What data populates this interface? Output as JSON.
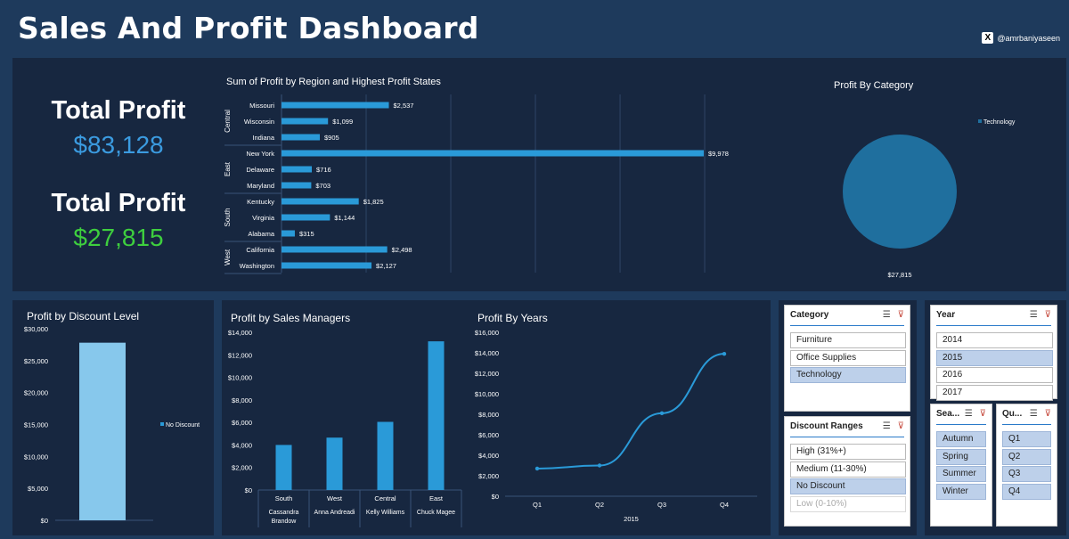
{
  "header": {
    "title": "Sales And Profit Dashboard",
    "handle": "@amrbaniyaseen",
    "x_icon": "x-logo-icon"
  },
  "kpis": {
    "first": {
      "label": "Total Profit",
      "value": "$83,128",
      "color": "#3b9be0"
    },
    "second": {
      "label": "Total Profit",
      "value": "$27,815",
      "color": "#3ecf3e"
    }
  },
  "colors": {
    "page_bg": "#1e3a5c",
    "panel_bg": "#172740",
    "bar": "#2a9ad8",
    "discount_bar": "#87c8ec",
    "pie": "#1f6f9e"
  },
  "region_chart": {
    "title": "Sum of Profit by Region and Highest Profit States",
    "groups": [
      "Central",
      "East",
      "South",
      "West"
    ]
  },
  "chart_data": [
    {
      "type": "bar",
      "title": "Sum of Profit by Region and Highest Profit States",
      "orientation": "horizontal",
      "categories": [
        "Missouri",
        "Wisconsin",
        "Indiana",
        "New York",
        "Delaware",
        "Maryland",
        "Kentucky",
        "Virginia",
        "Alabama",
        "California",
        "Washington"
      ],
      "groups": [
        "Central",
        "Central",
        "Central",
        "East",
        "East",
        "East",
        "South",
        "South",
        "South",
        "West",
        "West"
      ],
      "values": [
        2537,
        1099,
        905,
        9978,
        716,
        703,
        1825,
        1144,
        315,
        2498,
        2127
      ],
      "labels": [
        "$2,537",
        "$1,099",
        "$905",
        "$9,978",
        "$716",
        "$703",
        "$1,825",
        "$1,144",
        "$315",
        "$2,498",
        "$2,127"
      ],
      "xlim": [
        0,
        12000
      ],
      "grid": true
    },
    {
      "type": "pie",
      "title": "Profit By Category",
      "categories": [
        "Technology"
      ],
      "values": [
        27815
      ],
      "labels": [
        "$27,815"
      ],
      "legend": "top-right"
    },
    {
      "type": "bar",
      "title": "Profit by Discount Level",
      "categories": [
        ""
      ],
      "series": [
        {
          "name": "No Discount",
          "values": [
            27815
          ]
        }
      ],
      "yticks": [
        "$30,000",
        "$25,000",
        "$20,000",
        "$15,000",
        "$10,000",
        "$5,000",
        "$0"
      ],
      "ylim": [
        0,
        30000
      ],
      "legend": "right"
    },
    {
      "type": "bar",
      "title": "Profit by Sales Managers",
      "categories": [
        "South",
        "West",
        "Central",
        "East"
      ],
      "managers": [
        "Cassandra Brandow",
        "Anna Andreadi",
        "Kelly Williams",
        "Chuck Magee"
      ],
      "values": [
        4000,
        4650,
        6050,
        13200
      ],
      "yticks": [
        "$14,000",
        "$12,000",
        "$10,000",
        "$8,000",
        "$6,000",
        "$4,000",
        "$2,000",
        "$0"
      ],
      "ylim": [
        0,
        14000
      ]
    },
    {
      "type": "line",
      "title": "Profit By Years",
      "categories": [
        "Q1",
        "Q2",
        "Q3",
        "Q4"
      ],
      "xlabel": "2015",
      "values": [
        2700,
        3000,
        8100,
        13900
      ],
      "yticks": [
        "$16,000",
        "$14,000",
        "$12,000",
        "$10,000",
        "$8,000",
        "$6,000",
        "$4,000",
        "$2,000",
        "$0"
      ],
      "ylim": [
        0,
        16000
      ]
    }
  ],
  "slicers": {
    "category": {
      "title": "Category",
      "items": [
        {
          "label": "Furniture",
          "state": "normal"
        },
        {
          "label": "Office Supplies",
          "state": "normal"
        },
        {
          "label": "Technology",
          "state": "selected"
        }
      ]
    },
    "discount": {
      "title": "Discount Ranges",
      "items": [
        {
          "label": "High (31%+)",
          "state": "normal"
        },
        {
          "label": "Medium (11-30%)",
          "state": "normal"
        },
        {
          "label": "No Discount",
          "state": "selected"
        },
        {
          "label": "Low (0-10%)",
          "state": "dim"
        }
      ]
    },
    "year": {
      "title": "Year",
      "items": [
        {
          "label": "2014",
          "state": "normal"
        },
        {
          "label": "2015",
          "state": "selected"
        },
        {
          "label": "2016",
          "state": "normal"
        },
        {
          "label": "2017",
          "state": "normal"
        }
      ]
    },
    "season": {
      "title": "Sea...",
      "items": [
        {
          "label": "Autumn",
          "state": "selected"
        },
        {
          "label": "Spring",
          "state": "selected"
        },
        {
          "label": "Summer",
          "state": "selected"
        },
        {
          "label": "Winter",
          "state": "selected"
        }
      ]
    },
    "quarter": {
      "title": "Qu...",
      "items": [
        {
          "label": "Q1",
          "state": "selected"
        },
        {
          "label": "Q2",
          "state": "selected"
        },
        {
          "label": "Q3",
          "state": "selected"
        },
        {
          "label": "Q4",
          "state": "selected"
        }
      ]
    },
    "icons": {
      "multi_select": "multi-select-icon",
      "clear_filter": "clear-filter-icon"
    }
  }
}
